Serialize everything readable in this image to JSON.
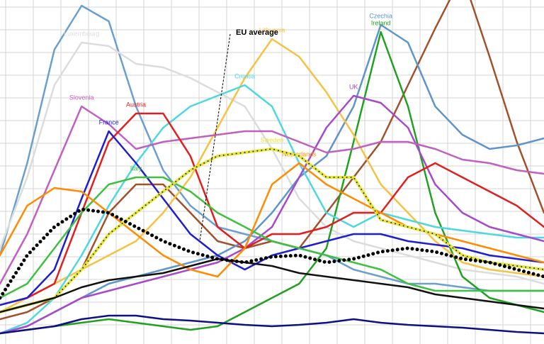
{
  "chart_data": {
    "type": "line",
    "grid": true,
    "x": [
      0,
      1,
      2,
      3,
      4,
      5,
      6,
      7,
      8,
      9,
      10,
      11,
      12,
      13,
      14,
      15,
      16,
      17,
      18,
      19,
      20
    ],
    "xlim": [
      0,
      20
    ],
    "ylim": [
      0,
      485
    ],
    "series": [
      {
        "color": "#6a9fcf",
        "values": [
          125,
          255,
          415,
          477,
          455,
          335,
          245,
          195,
          165,
          155,
          145,
          135,
          125,
          105,
          95,
          85,
          85,
          80,
          75,
          75,
          75
        ]
      },
      {
        "name": "Luxembourg",
        "color": "#dcdcdc",
        "values": [
          135,
          235,
          365,
          425,
          420,
          395,
          390,
          375,
          355,
          335,
          275,
          205,
          165,
          145,
          135,
          125,
          115,
          105,
          100,
          95,
          85
        ]
      },
      {
        "color": "#a0522d",
        "values": [
          35,
          45,
          65,
          105,
          185,
          225,
          225,
          185,
          145,
          135,
          145,
          135,
          185,
          235,
          285,
          365,
          445,
          520,
          405,
          285,
          185
        ]
      },
      {
        "name": "Czechia",
        "color": "#5f95c8",
        "values": [
          15,
          25,
          45,
          65,
          85,
          95,
          105,
          115,
          125,
          145,
          185,
          235,
          265,
          335,
          450,
          425,
          335,
          295,
          275,
          280,
          290
        ]
      },
      {
        "name": "Ireland",
        "color": "#22a022",
        "values": [
          15,
          20,
          25,
          30,
          35,
          30,
          25,
          20,
          25,
          45,
          65,
          85,
          135,
          285,
          440,
          335,
          185,
          95,
          65,
          55,
          45
        ]
      },
      {
        "name": "Lithuania",
        "color": "#f5c342",
        "values": [
          45,
          65,
          85,
          105,
          125,
          145,
          185,
          235,
          305,
          375,
          430,
          405,
          355,
          295,
          225,
          185,
          145,
          115,
          105,
          100,
          95
        ]
      },
      {
        "name": "Croatia",
        "color": "#4dd8e0",
        "values": [
          15,
          30,
          65,
          125,
          195,
          255,
          305,
          335,
          350,
          365,
          335,
          255,
          185,
          165,
          185,
          175,
          165,
          160,
          155,
          150,
          150
        ]
      },
      {
        "name": "UK",
        "color": "#a64ac9",
        "values": [
          15,
          25,
          45,
          65,
          75,
          85,
          95,
          105,
          115,
          135,
          165,
          235,
          305,
          350,
          340,
          305,
          225,
          185,
          165,
          155,
          145
        ]
      },
      {
        "name": "Slovenia",
        "color": "#c060c0",
        "values": [
          85,
          155,
          245,
          335,
          310,
          275,
          285,
          290,
          295,
          300,
          300,
          285,
          270,
          275,
          285,
          285,
          275,
          260,
          255,
          245,
          240
        ]
      },
      {
        "name": "Austria",
        "color": "#e02020",
        "values": [
          55,
          65,
          85,
          185,
          285,
          325,
          325,
          265,
          165,
          135,
          155,
          155,
          165,
          185,
          185,
          235,
          255,
          235,
          215,
          195,
          165
        ]
      },
      {
        "name": "France",
        "color": "#1f1fd0",
        "values": [
          55,
          65,
          105,
          205,
          300,
          255,
          205,
          155,
          125,
          105,
          125,
          135,
          145,
          155,
          155,
          145,
          140,
          135,
          125,
          120,
          115
        ]
      },
      {
        "name": "Italy",
        "color": "#40c040",
        "values": [
          65,
          85,
          135,
          185,
          225,
          235,
          235,
          215,
          185,
          165,
          145,
          135,
          125,
          115,
          105,
          85,
          75,
          75,
          75,
          75,
          75
        ]
      },
      {
        "name": "Netherlands",
        "color": "#ff8c00",
        "values": [
          125,
          195,
          220,
          215,
          185,
          155,
          125,
          105,
          95,
          135,
          225,
          255,
          225,
          205,
          185,
          165,
          155,
          145,
          135,
          125,
          115
        ]
      },
      {
        "name": "Sweden",
        "color": "#e6e633",
        "dash": "dotted",
        "values": [
          45,
          55,
          65,
          105,
          155,
          185,
          215,
          245,
          265,
          270,
          275,
          265,
          235,
          235,
          175,
          165,
          155,
          125,
          115,
          110,
          105
        ]
      },
      {
        "color": "#101080",
        "values": [
          15,
          20,
          25,
          35,
          40,
          40,
          35,
          33,
          30,
          27,
          25,
          27,
          30,
          35,
          30,
          27,
          25,
          23,
          20,
          17,
          15
        ]
      },
      {
        "color": "#111111",
        "values": [
          45,
          55,
          65,
          80,
          90,
          95,
          100,
          110,
          120,
          115,
          110,
          100,
          95,
          90,
          85,
          80,
          70,
          65,
          60,
          55,
          50
        ]
      },
      {
        "name": "EU average",
        "color": "#000000",
        "dash": "dots",
        "values": [
          65,
          125,
          165,
          190,
          185,
          165,
          145,
          130,
          120,
          115,
          123,
          125,
          115,
          120,
          130,
          135,
          130,
          120,
          115,
          105,
          95
        ]
      }
    ]
  }
}
